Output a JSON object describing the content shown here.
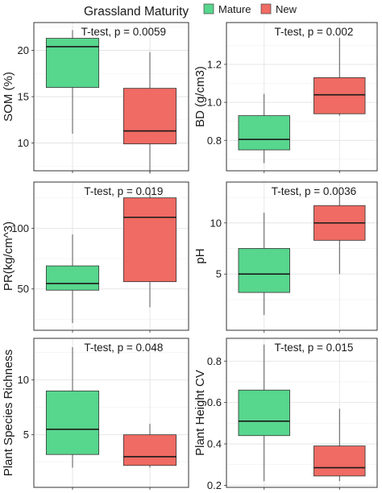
{
  "legend": {
    "title": "Grassland Maturity",
    "items": [
      {
        "label": "Mature",
        "color": "#57D68D"
      },
      {
        "label": "New",
        "color": "#EF6B63"
      }
    ]
  },
  "chart_data": [
    {
      "type": "boxplot",
      "ylabel": "SOM (%)",
      "annotation": "T-test, p = 0.0059",
      "ylim": [
        7,
        23
      ],
      "yticks": [
        10,
        15,
        20
      ],
      "tick_labels": [
        "10",
        "15",
        "20"
      ],
      "boxes": [
        {
          "group": "Mature",
          "min": 11.0,
          "q1": 16.0,
          "median": 20.4,
          "q3": 21.3,
          "max": 22.2
        },
        {
          "group": "New",
          "min": 6.7,
          "q1": 9.9,
          "median": 11.3,
          "q3": 15.9,
          "max": 19.8
        }
      ]
    },
    {
      "type": "boxplot",
      "ylabel": "BD (g/cm3)",
      "annotation": "T-test, p = 0.002",
      "ylim": [
        0.64,
        1.42
      ],
      "yticks": [
        0.8,
        1.0,
        1.2
      ],
      "tick_labels": [
        "0.8",
        "1.0",
        "1.2"
      ],
      "boxes": [
        {
          "group": "Mature",
          "min": 0.68,
          "q1": 0.75,
          "median": 0.805,
          "q3": 0.93,
          "max": 1.045
        },
        {
          "group": "New",
          "min": 0.93,
          "q1": 0.94,
          "median": 1.04,
          "q3": 1.13,
          "max": 1.34
        }
      ]
    },
    {
      "type": "boxplot",
      "ylabel": "PR(kg/cm^3)",
      "annotation": "T-test, p = 0.019",
      "ylim": [
        16,
        138
      ],
      "yticks": [
        50,
        100
      ],
      "tick_labels": [
        "50",
        "100"
      ],
      "boxes": [
        {
          "group": "Mature",
          "min": 22,
          "q1": 49,
          "median": 54.5,
          "q3": 69,
          "max": 95
        },
        {
          "group": "New",
          "min": 35,
          "q1": 56,
          "median": 109,
          "q3": 125,
          "max": 132
        }
      ]
    },
    {
      "type": "boxplot",
      "ylabel": "pH",
      "annotation": "T-test, p = 0.0036",
      "ylim": [
        -0.5,
        14
      ],
      "yticks": [
        5,
        10
      ],
      "tick_labels": [
        "5",
        "10"
      ],
      "boxes": [
        {
          "group": "Mature",
          "min": 1.0,
          "q1": 3.2,
          "median": 5.0,
          "q3": 7.5,
          "max": 11.0
        },
        {
          "group": "New",
          "min": 5.0,
          "q1": 8.3,
          "median": 10.0,
          "q3": 11.7,
          "max": 13.0
        }
      ]
    },
    {
      "type": "boxplot",
      "ylabel": "Plant Species Richness",
      "annotation": "T-test, p = 0.048",
      "ylim": [
        0.2,
        13.8
      ],
      "yticks": [
        5,
        10
      ],
      "tick_labels": [
        "5",
        "10"
      ],
      "boxes": [
        {
          "group": "Mature",
          "min": 2.0,
          "q1": 3.2,
          "median": 5.5,
          "q3": 9.0,
          "max": 13.0
        },
        {
          "group": "New",
          "min": 2.0,
          "q1": 2.2,
          "median": 3.0,
          "q3": 5.0,
          "max": 6.0
        }
      ]
    },
    {
      "type": "boxplot",
      "ylabel": "Plant Height CV",
      "annotation": "T-test, p = 0.015",
      "ylim": [
        0.19,
        0.91
      ],
      "yticks": [
        0.2,
        0.4,
        0.6,
        0.8
      ],
      "tick_labels": [
        "0.2",
        "0.4",
        "0.6",
        "0.8"
      ],
      "boxes": [
        {
          "group": "Mature",
          "min": 0.22,
          "q1": 0.44,
          "median": 0.51,
          "q3": 0.66,
          "max": 0.88
        },
        {
          "group": "New",
          "min": 0.22,
          "q1": 0.245,
          "median": 0.285,
          "q3": 0.39,
          "max": 0.57
        }
      ]
    }
  ]
}
